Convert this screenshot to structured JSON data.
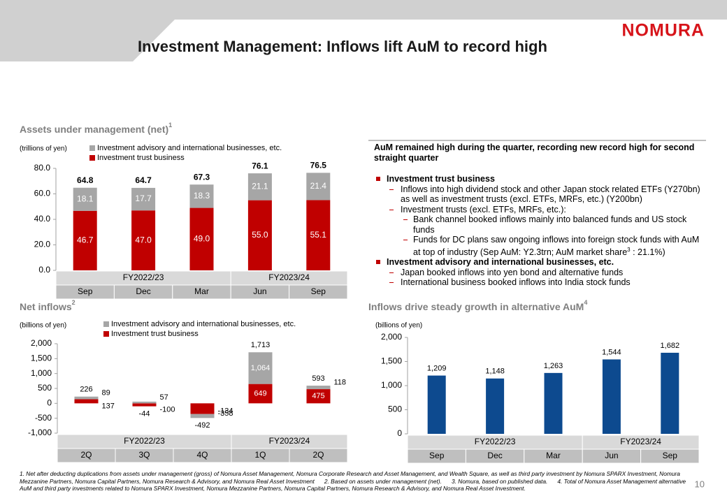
{
  "header": {
    "title": "Investment Management: Inflows lift AuM to record high",
    "logo": "NOMURA",
    "page_number": "10"
  },
  "chart_data": [
    {
      "type": "stacked_bar",
      "title": "Assets under management (net)",
      "title_note": "1",
      "unit_label": "(trillions of yen)",
      "categories": [
        "Sep",
        "Dec",
        "Mar",
        "Jun",
        "Sep"
      ],
      "fiscal_years": [
        "FY2022/23",
        "FY2022/23",
        "FY2022/23",
        "FY2023/24",
        "FY2023/24"
      ],
      "series": [
        {
          "name": "Investment trust business",
          "color": "#c00000",
          "values": [
            46.7,
            47.0,
            49.0,
            55.0,
            55.1
          ],
          "value_labels": [
            "46.7",
            "47.0",
            "49.0",
            "55.0",
            "55.1"
          ]
        },
        {
          "name": "Investment advisory and international businesses, etc.",
          "color": "#a6a6a6",
          "values": [
            18.1,
            17.7,
            18.3,
            21.1,
            21.4
          ]
        }
      ],
      "totals": [
        64.8,
        64.7,
        67.3,
        76.1,
        76.5
      ],
      "ylim": [
        0,
        80
      ],
      "yticks": [
        {
          "value": 0,
          "label": "0.0"
        },
        {
          "value": 20,
          "label": "20.0"
        },
        {
          "value": 40,
          "label": "40.0"
        },
        {
          "value": 60,
          "label": "60.0"
        },
        {
          "value": 80,
          "label": "80.0"
        }
      ]
    },
    {
      "type": "stacked_bar",
      "title": "Net inflows",
      "title_note": "2",
      "unit_label": "(billions of yen)",
      "categories": [
        "2Q",
        "3Q",
        "4Q",
        "1Q",
        "2Q"
      ],
      "fiscal_years": [
        "FY2022/23",
        "FY2022/23",
        "FY2022/23",
        "FY2023/24",
        "FY2023/24"
      ],
      "series": [
        {
          "name": "Investment trust business",
          "color": "#c00000",
          "values": [
            137,
            -100,
            -358,
            649,
            475
          ]
        },
        {
          "name": "Investment advisory and international businesses, etc.",
          "color": "#a6a6a6",
          "values": [
            89,
            57,
            -134,
            1064,
            118
          ],
          "value_labels": [
            "89",
            "57",
            "-134",
            "1,064",
            "118"
          ]
        }
      ],
      "totals": [
        226,
        -44,
        -492,
        1713,
        593
      ],
      "total_labels": [
        "226",
        "-44",
        "-492",
        "1,713",
        "593"
      ],
      "ylim": [
        -1000,
        2000
      ],
      "yticks": [
        {
          "value": -1000,
          "label": "-1,000"
        },
        -500,
        0,
        500,
        {
          "value": 1000,
          "label": "1,000"
        },
        {
          "value": 1500,
          "label": "1,500"
        },
        {
          "value": 2000,
          "label": "2,000"
        }
      ]
    },
    {
      "type": "bar",
      "title": "Inflows drive steady growth in alternative AuM",
      "title_note": "4",
      "unit_label": "(billions of yen)",
      "categories": [
        "Sep",
        "Dec",
        "Mar",
        "Jun",
        "Sep"
      ],
      "fiscal_years": [
        "FY2022/23",
        "FY2022/23",
        "FY2022/23",
        "FY2023/24",
        "FY2023/24"
      ],
      "color": "#0d4a8f",
      "values": [
        1209,
        1148,
        1263,
        1544,
        1682
      ],
      "value_labels": [
        "1,209",
        "1,148",
        "1,263",
        "1,544",
        "1,682"
      ],
      "ylim": [
        0,
        2000
      ],
      "yticks": [
        0,
        500,
        {
          "value": 1000,
          "label": "1,000"
        },
        {
          "value": 1500,
          "label": "1,500"
        },
        {
          "value": 2000,
          "label": "2,000"
        }
      ]
    }
  ],
  "commentary": {
    "heading": "AuM remained high during the quarter, recording new record high for second straight quarter",
    "items": [
      {
        "text": "Investment trust business",
        "sub": [
          {
            "text": "Inflows into high dividend stock and other Japan stock related ETFs (Y270bn) as well as investment trusts (excl. ETFs, MRFs, etc.) (Y200bn)"
          },
          {
            "text": "Investment trusts (excl. ETFs, MRFs, etc.):",
            "sub": [
              {
                "text": "Bank channel booked inflows mainly into balanced funds and US stock funds"
              },
              {
                "text": "Funds for DC plans saw ongoing inflows into foreign stock funds with AuM at top of industry (Sep AuM: Y2.3trn; AuM market share",
                "note": "3",
                "text_after": " : 21.1%)"
              }
            ]
          }
        ]
      },
      {
        "text": "Investment advisory and international businesses, etc.",
        "sub": [
          {
            "text": "Japan booked inflows into yen bond and alternative funds"
          },
          {
            "text": "International business booked inflows into India stock funds"
          }
        ]
      }
    ]
  },
  "footnotes": [
    "1.   Net after deducting duplications from assets under management (gross) of Nomura Asset Management, Nomura Corporate Research and Asset Management, and Wealth Square, as well as third party investment by Nomura SPARX Investment, Nomura Mezzanine Partners, Nomura Capital Partners, Nomura Research & Advisory, and Nomura Real Asset Investment",
    "2.   Based on assets under management (net).",
    "3.   Nomura, based on published data.",
    "4.   Total of Nomura Asset Management alternative AuM and third party investments related to Nomura SPARX Investment, Nomura Mezzanine Partners, Nomura Capital Partners, Nomura Research & Advisory, and Nomura Real Asset Investment."
  ]
}
